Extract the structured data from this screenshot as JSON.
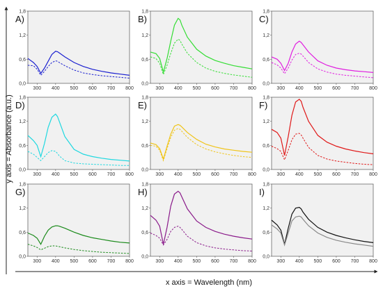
{
  "figure": {
    "xlabel": "x axis = Wavelength (nm)",
    "ylabel": "y axis = Absorbance (a.u.)"
  },
  "chart_data": [
    {
      "type": "line",
      "label": "A)",
      "color": "#1a1fd0",
      "x": [
        250,
        280,
        300,
        320,
        340,
        360,
        380,
        400,
        410,
        420,
        450,
        500,
        550,
        600,
        650,
        700,
        750,
        800
      ],
      "xlim": [
        250,
        800
      ],
      "ylim": [
        0,
        1.8
      ],
      "yticks": [
        "0,0",
        "0,6",
        "1,2",
        "1,8"
      ],
      "xticks": [
        "300",
        "400",
        "500",
        "600",
        "700",
        "800"
      ],
      "series": [
        {
          "style": "solid",
          "values": [
            0.62,
            0.52,
            0.42,
            0.25,
            0.38,
            0.55,
            0.72,
            0.8,
            0.79,
            0.76,
            0.66,
            0.52,
            0.42,
            0.35,
            0.3,
            0.26,
            0.23,
            0.2
          ]
        },
        {
          "style": "dashed",
          "values": [
            0.45,
            0.44,
            0.35,
            0.2,
            0.3,
            0.42,
            0.52,
            0.56,
            0.55,
            0.52,
            0.44,
            0.33,
            0.26,
            0.22,
            0.19,
            0.17,
            0.15,
            0.13
          ]
        }
      ]
    },
    {
      "type": "line",
      "label": "B)",
      "color": "#33dd33",
      "x": [
        250,
        280,
        300,
        320,
        340,
        360,
        380,
        400,
        410,
        420,
        450,
        500,
        550,
        600,
        650,
        700,
        750,
        800
      ],
      "xlim": [
        250,
        800
      ],
      "ylim": [
        0,
        1.8
      ],
      "yticks": [
        "0,0",
        "0,6",
        "1,2",
        "1,8"
      ],
      "xticks": [
        "300",
        "400",
        "500",
        "600",
        "700",
        "800"
      ],
      "series": [
        {
          "style": "solid",
          "values": [
            0.78,
            0.74,
            0.62,
            0.28,
            0.62,
            1.05,
            1.45,
            1.62,
            1.58,
            1.45,
            1.15,
            0.85,
            0.68,
            0.57,
            0.5,
            0.44,
            0.4,
            0.36
          ]
        },
        {
          "style": "dashed",
          "values": [
            0.66,
            0.62,
            0.5,
            0.22,
            0.45,
            0.75,
            1.0,
            1.1,
            1.07,
            0.98,
            0.75,
            0.52,
            0.38,
            0.3,
            0.25,
            0.21,
            0.18,
            0.15
          ]
        }
      ]
    },
    {
      "type": "line",
      "label": "C)",
      "color": "#e01ee0",
      "x": [
        250,
        280,
        300,
        320,
        340,
        360,
        380,
        400,
        410,
        420,
        450,
        500,
        550,
        600,
        650,
        700,
        750,
        800
      ],
      "xlim": [
        250,
        800
      ],
      "ylim": [
        0,
        1.8
      ],
      "yticks": [
        "0,0",
        "0,6",
        "1,2",
        "1,8"
      ],
      "xticks": [
        "300",
        "400",
        "500",
        "600",
        "700",
        "800"
      ],
      "series": [
        {
          "style": "solid",
          "values": [
            0.66,
            0.6,
            0.5,
            0.32,
            0.5,
            0.78,
            0.98,
            1.05,
            1.02,
            0.96,
            0.78,
            0.56,
            0.45,
            0.38,
            0.34,
            0.31,
            0.29,
            0.27
          ]
        },
        {
          "style": "dashed",
          "values": [
            0.52,
            0.46,
            0.38,
            0.24,
            0.38,
            0.58,
            0.72,
            0.75,
            0.73,
            0.68,
            0.52,
            0.36,
            0.28,
            0.23,
            0.2,
            0.18,
            0.16,
            0.14
          ]
        }
      ]
    },
    {
      "type": "line",
      "label": "D)",
      "color": "#1ed8e0",
      "x": [
        250,
        280,
        300,
        320,
        340,
        360,
        380,
        400,
        410,
        420,
        450,
        500,
        550,
        600,
        650,
        700,
        750,
        800
      ],
      "xlim": [
        250,
        800
      ],
      "ylim": [
        0,
        1.8
      ],
      "yticks": [
        "0,0",
        "0,6",
        "1,2",
        "1,8"
      ],
      "xticks": [
        "300",
        "400",
        "500",
        "600",
        "700",
        "800"
      ],
      "series": [
        {
          "style": "solid",
          "values": [
            0.85,
            0.72,
            0.6,
            0.32,
            0.65,
            1.05,
            1.3,
            1.38,
            1.32,
            1.2,
            0.82,
            0.5,
            0.38,
            0.32,
            0.28,
            0.25,
            0.23,
            0.21
          ]
        },
        {
          "style": "dashed",
          "values": [
            0.45,
            0.38,
            0.3,
            0.22,
            0.32,
            0.42,
            0.47,
            0.45,
            0.4,
            0.34,
            0.22,
            0.16,
            0.14,
            0.13,
            0.12,
            0.11,
            0.1,
            0.1
          ]
        }
      ]
    },
    {
      "type": "line",
      "label": "E)",
      "color": "#f0c419",
      "x": [
        250,
        280,
        300,
        320,
        340,
        360,
        380,
        400,
        410,
        420,
        450,
        500,
        550,
        600,
        650,
        700,
        750,
        800
      ],
      "xlim": [
        250,
        800
      ],
      "ylim": [
        0,
        1.8
      ],
      "yticks": [
        "0,0",
        "0,6",
        "1,2",
        "1,8"
      ],
      "xticks": [
        "300",
        "400",
        "500",
        "600",
        "700",
        "800"
      ],
      "series": [
        {
          "style": "solid",
          "values": [
            0.66,
            0.62,
            0.52,
            0.26,
            0.58,
            0.88,
            1.08,
            1.12,
            1.1,
            1.06,
            0.92,
            0.75,
            0.63,
            0.56,
            0.51,
            0.48,
            0.45,
            0.43
          ]
        },
        {
          "style": "dashed",
          "values": [
            0.6,
            0.58,
            0.48,
            0.22,
            0.52,
            0.8,
            0.98,
            1.02,
            1.0,
            0.95,
            0.8,
            0.62,
            0.51,
            0.44,
            0.39,
            0.35,
            0.32,
            0.3
          ]
        }
      ]
    },
    {
      "type": "line",
      "label": "F)",
      "color": "#e01818",
      "x": [
        250,
        280,
        300,
        320,
        340,
        360,
        380,
        400,
        410,
        420,
        450,
        500,
        550,
        600,
        650,
        700,
        750,
        800
      ],
      "xlim": [
        250,
        800
      ],
      "ylim": [
        0,
        1.8
      ],
      "yticks": [
        "0,0",
        "0,6",
        "1,2",
        "1,8"
      ],
      "xticks": [
        "300",
        "400",
        "500",
        "600",
        "700",
        "800"
      ],
      "series": [
        {
          "style": "solid",
          "values": [
            1.0,
            0.92,
            0.78,
            0.35,
            0.82,
            1.35,
            1.68,
            1.75,
            1.7,
            1.55,
            1.2,
            0.85,
            0.68,
            0.58,
            0.51,
            0.46,
            0.42,
            0.39
          ]
        },
        {
          "style": "dashed",
          "values": [
            0.58,
            0.52,
            0.45,
            0.24,
            0.48,
            0.74,
            0.88,
            0.9,
            0.86,
            0.78,
            0.55,
            0.35,
            0.26,
            0.21,
            0.18,
            0.15,
            0.13,
            0.12
          ]
        }
      ]
    },
    {
      "type": "line",
      "label": "G)",
      "color": "#1a8a1a",
      "x": [
        250,
        280,
        300,
        320,
        340,
        360,
        380,
        400,
        410,
        420,
        450,
        500,
        550,
        600,
        650,
        700,
        750,
        800
      ],
      "xlim": [
        250,
        800
      ],
      "ylim": [
        0,
        1.8
      ],
      "yticks": [
        "0,0",
        "0,6",
        "1,2",
        "1,8"
      ],
      "xticks": [
        "300",
        "400",
        "500",
        "600",
        "700",
        "800"
      ],
      "series": [
        {
          "style": "solid",
          "values": [
            0.58,
            0.52,
            0.45,
            0.3,
            0.5,
            0.65,
            0.73,
            0.76,
            0.76,
            0.75,
            0.7,
            0.6,
            0.52,
            0.46,
            0.42,
            0.38,
            0.35,
            0.33
          ]
        },
        {
          "style": "dashed",
          "values": [
            0.3,
            0.26,
            0.22,
            0.16,
            0.2,
            0.24,
            0.26,
            0.26,
            0.25,
            0.24,
            0.21,
            0.17,
            0.14,
            0.12,
            0.1,
            0.09,
            0.08,
            0.07
          ]
        }
      ]
    },
    {
      "type": "line",
      "label": "H)",
      "color": "#8a1a8a",
      "x": [
        250,
        280,
        300,
        320,
        340,
        360,
        380,
        400,
        410,
        420,
        450,
        500,
        550,
        600,
        650,
        700,
        750,
        800
      ],
      "xlim": [
        250,
        800
      ],
      "ylim": [
        0,
        1.8
      ],
      "yticks": [
        "0,0",
        "0,6",
        "1,2",
        "1,8"
      ],
      "xticks": [
        "300",
        "400",
        "500",
        "600",
        "700",
        "800"
      ],
      "series": [
        {
          "style": "solid",
          "values": [
            1.02,
            0.9,
            0.75,
            0.3,
            0.72,
            1.25,
            1.55,
            1.62,
            1.58,
            1.48,
            1.18,
            0.88,
            0.72,
            0.62,
            0.55,
            0.5,
            0.46,
            0.43
          ]
        },
        {
          "style": "dashed",
          "values": [
            0.58,
            0.52,
            0.45,
            0.28,
            0.42,
            0.62,
            0.72,
            0.75,
            0.72,
            0.67,
            0.5,
            0.34,
            0.26,
            0.21,
            0.18,
            0.16,
            0.14,
            0.13
          ]
        }
      ]
    },
    {
      "type": "line",
      "label": "I)",
      "color": "#111111",
      "x": [
        250,
        280,
        300,
        320,
        340,
        360,
        380,
        400,
        410,
        420,
        450,
        500,
        550,
        600,
        650,
        700,
        750,
        800
      ],
      "xlim": [
        250,
        800
      ],
      "ylim": [
        0,
        1.8
      ],
      "yticks": [
        "0,0",
        "0,6",
        "1,2",
        "1,8"
      ],
      "xticks": [
        "300",
        "400",
        "500",
        "600",
        "700",
        "800"
      ],
      "series": [
        {
          "style": "solid",
          "color": "#111111",
          "values": [
            0.9,
            0.78,
            0.65,
            0.3,
            0.7,
            1.05,
            1.2,
            1.22,
            1.18,
            1.1,
            0.92,
            0.72,
            0.6,
            0.52,
            0.46,
            0.41,
            0.37,
            0.34
          ]
        },
        {
          "style": "solid",
          "color": "#888888",
          "values": [
            0.78,
            0.68,
            0.58,
            0.28,
            0.58,
            0.88,
            0.98,
            1.0,
            0.98,
            0.92,
            0.76,
            0.58,
            0.47,
            0.4,
            0.35,
            0.31,
            0.28,
            0.25
          ]
        }
      ]
    }
  ]
}
